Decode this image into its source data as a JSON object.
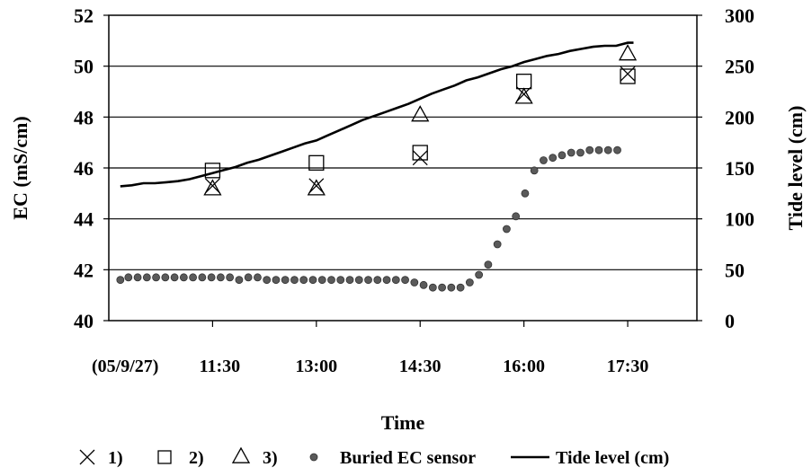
{
  "chart_data": {
    "type": "scatter",
    "title": "",
    "xlabel": "Time",
    "ylabel": "EC (mS/cm)",
    "y2label": "Tide level (cm)",
    "x_start_label": "(05/9/27)",
    "x_tick_labels": [
      "11:30",
      "13:00",
      "14:30",
      "16:00",
      "17:30"
    ],
    "x_ticks_min": [
      690,
      780,
      870,
      960,
      1050
    ],
    "xlim_min": [
      600,
      1110
    ],
    "ylim": [
      40,
      52
    ],
    "y_ticks": [
      40,
      42,
      44,
      46,
      48,
      50,
      52
    ],
    "y2lim": [
      0,
      300
    ],
    "y2_ticks": [
      0,
      50,
      100,
      150,
      200,
      250,
      300
    ],
    "grid": "horizontal",
    "legend_position": "bottom",
    "series": [
      {
        "name": "1)",
        "marker": "x",
        "axis": "left",
        "x_min": [
          690,
          780,
          870,
          960,
          1050
        ],
        "values": [
          45.3,
          45.3,
          46.4,
          48.9,
          49.7
        ]
      },
      {
        "name": "2)",
        "marker": "square",
        "axis": "left",
        "x_min": [
          690,
          780,
          870,
          960,
          1050
        ],
        "values": [
          45.9,
          46.2,
          46.6,
          49.4,
          49.6
        ]
      },
      {
        "name": "3)",
        "marker": "triangle",
        "axis": "left",
        "x_min": [
          690,
          780,
          870,
          960,
          1050
        ],
        "values": [
          45.2,
          45.2,
          48.1,
          48.8,
          50.5
        ]
      },
      {
        "name": "Buried EC sensor",
        "marker": "dot",
        "axis": "left",
        "x_min": [
          610,
          617,
          625,
          633,
          641,
          649,
          657,
          665,
          673,
          681,
          689,
          697,
          705,
          713,
          721,
          729,
          737,
          745,
          753,
          761,
          769,
          777,
          785,
          793,
          801,
          809,
          817,
          825,
          833,
          841,
          849,
          857,
          865,
          873,
          881,
          889,
          897,
          905,
          913,
          921,
          929,
          937,
          945,
          953,
          961,
          969,
          977,
          985,
          993,
          1001,
          1009,
          1017,
          1025,
          1033,
          1041
        ],
        "values": [
          41.6,
          41.7,
          41.7,
          41.7,
          41.7,
          41.7,
          41.7,
          41.7,
          41.7,
          41.7,
          41.7,
          41.7,
          41.7,
          41.6,
          41.7,
          41.7,
          41.6,
          41.6,
          41.6,
          41.6,
          41.6,
          41.6,
          41.6,
          41.6,
          41.6,
          41.6,
          41.6,
          41.6,
          41.6,
          41.6,
          41.6,
          41.6,
          41.5,
          41.4,
          41.3,
          41.3,
          41.3,
          41.3,
          41.5,
          41.8,
          42.2,
          43.0,
          43.6,
          44.1,
          45.0,
          45.9,
          46.3,
          46.4,
          46.5,
          46.6,
          46.6,
          46.7,
          46.7,
          46.7,
          46.7
        ]
      },
      {
        "name": "Tide level (cm)",
        "marker": "line",
        "axis": "right",
        "x_min": [
          610,
          620,
          630,
          640,
          650,
          660,
          670,
          680,
          690,
          700,
          710,
          720,
          730,
          740,
          750,
          760,
          770,
          780,
          790,
          800,
          810,
          820,
          830,
          840,
          850,
          860,
          870,
          880,
          890,
          900,
          910,
          920,
          930,
          940,
          950,
          960,
          970,
          980,
          990,
          1000,
          1010,
          1020,
          1030,
          1040,
          1050,
          1055
        ],
        "values": [
          132,
          133,
          135,
          135,
          136,
          137,
          139,
          142,
          145,
          148,
          151,
          155,
          158,
          162,
          166,
          170,
          174,
          177,
          182,
          187,
          192,
          197,
          201,
          205,
          209,
          213,
          218,
          223,
          227,
          231,
          236,
          239,
          243,
          247,
          250,
          254,
          257,
          260,
          262,
          265,
          267,
          269,
          270,
          270,
          273,
          273
        ]
      }
    ]
  }
}
